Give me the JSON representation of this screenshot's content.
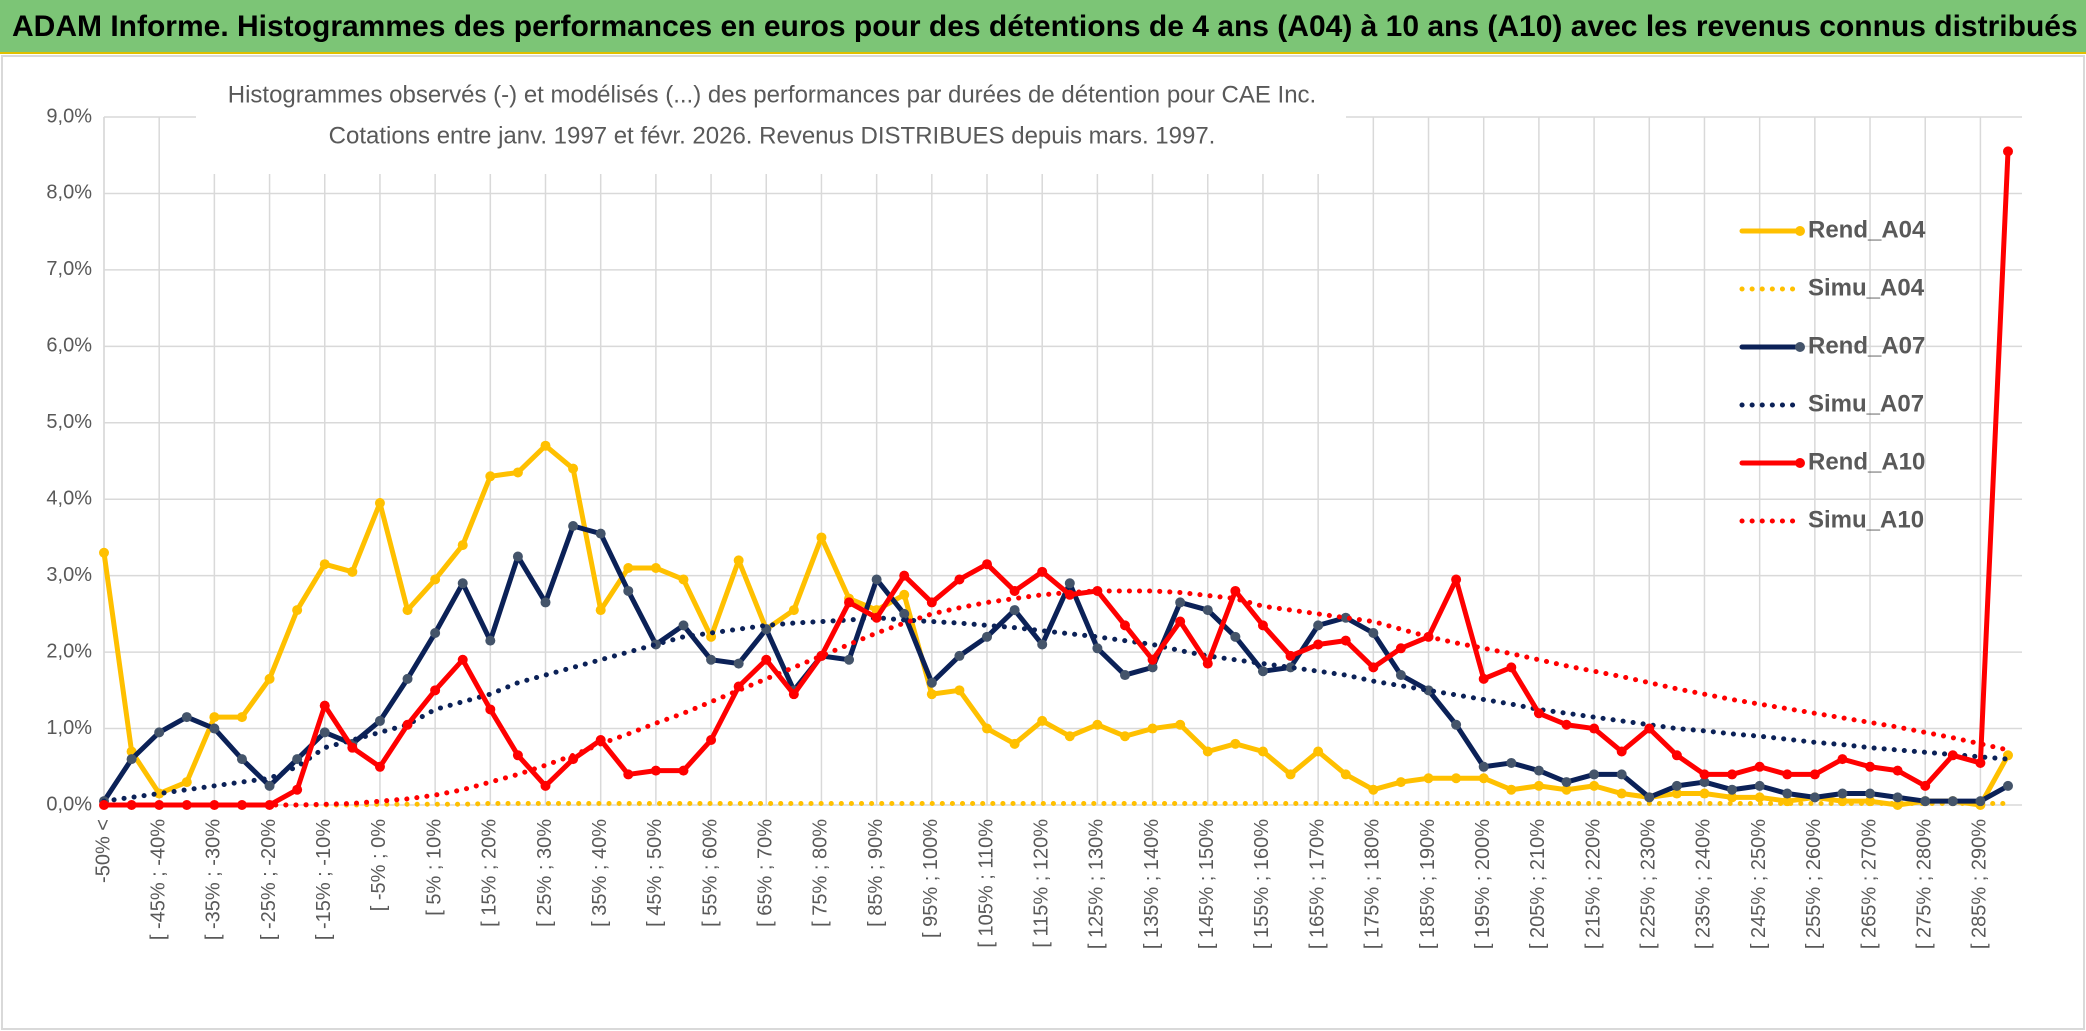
{
  "header": {
    "title": "ADAM Informe. Histogrammes des performances en euros pour des détentions de 4 ans (A04) à 10 ans (A10) avec les revenus connus distribués"
  },
  "chart_data": {
    "type": "line",
    "title": "Histogrammes observés (-) et modélisés (...) des performances par durées de détention pour CAE Inc.",
    "subtitle": "Cotations entre janv. 1997 et févr. 2026. Revenus DISTRIBUES depuis mars. 1997.",
    "categories": [
      "-50% <",
      null,
      "[ -45% ; -40%",
      null,
      "[ -35% ; -30%",
      null,
      "[ -25% ; -20%",
      null,
      "[ -15% ; -10%",
      null,
      "[ -5% ; 0%",
      null,
      "[ 5% ; 10%",
      null,
      "[ 15% ; 20%",
      null,
      "[ 25% ; 30%",
      null,
      "[ 35% ; 40%",
      null,
      "[ 45% ; 50%",
      null,
      "[ 55% ; 60%",
      null,
      "[ 65% ; 70%",
      null,
      "[ 75% ; 80%",
      null,
      "[ 85% ; 90%",
      null,
      "[ 95% ; 100%",
      null,
      "[ 105% ; 110%",
      null,
      "[ 115% ; 120%",
      null,
      "[ 125% ; 130%",
      null,
      "[ 135% ; 140%",
      null,
      "[ 145% ; 150%",
      null,
      "[ 155% ; 160%",
      null,
      "[ 165% ; 170%",
      null,
      "[ 175% ; 180%",
      null,
      "[ 185% ; 190%",
      null,
      "[ 195% ; 200%",
      null,
      "[ 205% ; 210%",
      null,
      "[ 215% ; 220%",
      null,
      "[ 225% ; 230%",
      null,
      "[ 235% ; 240%",
      null,
      "[ 245% ; 250%",
      null,
      "[ 255% ; 260%",
      null,
      "[ 265% ; 270%",
      null,
      "[ 275% ; 280%",
      null,
      "[ 285% ; 290%",
      null
    ],
    "ylim": [
      0,
      9
    ],
    "yticks": [
      {
        "value": 0,
        "label": "0,0%"
      },
      {
        "value": 1,
        "label": "1,0%"
      },
      {
        "value": 2,
        "label": "2,0%"
      },
      {
        "value": 3,
        "label": "3,0%"
      },
      {
        "value": 4,
        "label": "4,0%"
      },
      {
        "value": 5,
        "label": "5,0%"
      },
      {
        "value": 6,
        "label": "6,0%"
      },
      {
        "value": 7,
        "label": "7,0%"
      },
      {
        "value": 8,
        "label": "8,0%"
      },
      {
        "value": 9,
        "label": "9,0%"
      }
    ],
    "grid": true,
    "legend": "right",
    "series": [
      {
        "name": "Rend_A04",
        "color": "#ffc000",
        "style": "solid",
        "marker": true,
        "values": [
          3.3,
          0.7,
          0.15,
          0.3,
          1.15,
          1.15,
          1.65,
          2.55,
          3.15,
          3.05,
          3.95,
          2.55,
          2.95,
          3.4,
          4.3,
          4.35,
          4.7,
          4.4,
          2.55,
          3.1,
          3.1,
          2.95,
          2.2,
          3.2,
          2.3,
          2.55,
          3.5,
          2.7,
          2.55,
          2.75,
          1.45,
          1.5,
          1.0,
          0.8,
          1.1,
          0.9,
          1.05,
          0.9,
          1.0,
          1.05,
          0.7,
          0.8,
          0.7,
          0.4,
          0.7,
          0.4,
          0.2,
          0.3,
          0.35,
          0.35,
          0.35,
          0.2,
          0.25,
          0.2,
          0.25,
          0.15,
          0.1,
          0.15,
          0.15,
          0.1,
          0.1,
          0.05,
          0.1,
          0.05,
          0.05,
          0.0,
          0.05,
          0.05,
          0.0,
          0.65
        ]
      },
      {
        "name": "Simu_A04",
        "color": "#ffc000",
        "style": "dotted",
        "marker": false,
        "values": [
          0,
          0,
          0,
          0,
          0,
          0,
          0,
          0,
          0,
          0,
          0.01,
          0.01,
          0.01,
          0.01,
          0.02,
          0.02,
          0.02,
          0.02,
          0.02,
          0.02,
          0.02,
          0.02,
          0.02,
          0.02,
          0.02,
          0.02,
          0.02,
          0.02,
          0.02,
          0.02,
          0.02,
          0.02,
          0.02,
          0.02,
          0.02,
          0.02,
          0.02,
          0.02,
          0.02,
          0.02,
          0.02,
          0.02,
          0.02,
          0.02,
          0.02,
          0.02,
          0.02,
          0.02,
          0.02,
          0.02,
          0.02,
          0.02,
          0.02,
          0.02,
          0.02,
          0.02,
          0.02,
          0.02,
          0.02,
          0.02,
          0.02,
          0.02,
          0.02,
          0.02,
          0.02,
          0.02,
          0.02,
          0.02,
          0.02,
          0.02
        ]
      },
      {
        "name": "Rend_A07",
        "color": "#0b2157",
        "style": "solid",
        "marker": true,
        "values": [
          0.05,
          0.6,
          0.95,
          1.15,
          1.0,
          0.6,
          0.25,
          0.6,
          0.95,
          0.8,
          1.1,
          1.65,
          2.25,
          2.9,
          2.15,
          3.25,
          2.65,
          3.65,
          3.55,
          2.8,
          2.1,
          2.35,
          1.9,
          1.85,
          2.3,
          1.5,
          1.95,
          1.9,
          2.95,
          2.5,
          1.6,
          1.95,
          2.2,
          2.55,
          2.1,
          2.9,
          2.05,
          1.7,
          1.8,
          2.65,
          2.55,
          2.2,
          1.75,
          1.8,
          2.35,
          2.45,
          2.25,
          1.7,
          1.5,
          1.05,
          0.5,
          0.55,
          0.45,
          0.3,
          0.4,
          0.4,
          0.1,
          0.25,
          0.3,
          0.2,
          0.25,
          0.15,
          0.1,
          0.15,
          0.15,
          0.1,
          0.05,
          0.05,
          0.05,
          0.25
        ]
      },
      {
        "name": "Simu_A07",
        "color": "#0b2157",
        "style": "dotted",
        "marker": false,
        "values": [
          0.05,
          0.1,
          0.15,
          0.2,
          0.25,
          0.3,
          0.35,
          0.5,
          0.75,
          0.85,
          0.95,
          1.05,
          1.25,
          1.35,
          1.45,
          1.6,
          1.7,
          1.8,
          1.9,
          2.0,
          2.1,
          2.2,
          2.25,
          2.3,
          2.35,
          2.38,
          2.4,
          2.42,
          2.45,
          2.42,
          2.4,
          2.38,
          2.35,
          2.32,
          2.28,
          2.24,
          2.2,
          2.15,
          2.1,
          2.02,
          1.95,
          1.9,
          1.85,
          1.8,
          1.75,
          1.7,
          1.62,
          1.56,
          1.5,
          1.44,
          1.38,
          1.32,
          1.25,
          1.2,
          1.15,
          1.1,
          1.05,
          1.0,
          0.97,
          0.93,
          0.9,
          0.86,
          0.82,
          0.79,
          0.75,
          0.72,
          0.69,
          0.66,
          0.63,
          0.6
        ]
      },
      {
        "name": "Rend_A10",
        "color": "#ff0000",
        "style": "solid",
        "marker": true,
        "values": [
          0,
          0,
          0,
          0,
          0,
          0,
          0,
          0.2,
          1.3,
          0.75,
          0.5,
          1.05,
          1.5,
          1.9,
          1.25,
          0.65,
          0.25,
          0.6,
          0.85,
          0.4,
          0.45,
          0.45,
          0.85,
          1.55,
          1.9,
          1.45,
          1.95,
          2.65,
          2.45,
          3.0,
          2.65,
          2.95,
          3.15,
          2.8,
          3.05,
          2.75,
          2.8,
          2.35,
          1.9,
          2.4,
          1.85,
          2.8,
          2.35,
          1.95,
          2.1,
          2.15,
          1.8,
          2.05,
          2.2,
          2.95,
          1.65,
          1.8,
          1.2,
          1.05,
          1.0,
          0.7,
          1.0,
          0.65,
          0.4,
          0.4,
          0.5,
          0.4,
          0.4,
          0.6,
          0.5,
          0.45,
          0.25,
          0.65,
          0.55,
          8.55
        ]
      },
      {
        "name": "Simu_A10",
        "color": "#ff0000",
        "style": "dotted",
        "marker": false,
        "values": [
          0,
          0,
          0,
          0,
          0,
          0,
          0,
          0,
          0.01,
          0.02,
          0.05,
          0.08,
          0.13,
          0.2,
          0.3,
          0.4,
          0.52,
          0.65,
          0.8,
          0.93,
          1.07,
          1.2,
          1.35,
          1.5,
          1.65,
          1.8,
          1.95,
          2.1,
          2.25,
          2.38,
          2.5,
          2.58,
          2.65,
          2.7,
          2.75,
          2.78,
          2.8,
          2.8,
          2.8,
          2.78,
          2.74,
          2.7,
          2.6,
          2.55,
          2.5,
          2.45,
          2.4,
          2.3,
          2.2,
          2.12,
          2.05,
          1.98,
          1.9,
          1.82,
          1.75,
          1.68,
          1.6,
          1.52,
          1.45,
          1.38,
          1.32,
          1.26,
          1.2,
          1.14,
          1.08,
          1.02,
          0.95,
          0.88,
          0.8,
          0.72
        ]
      }
    ]
  }
}
